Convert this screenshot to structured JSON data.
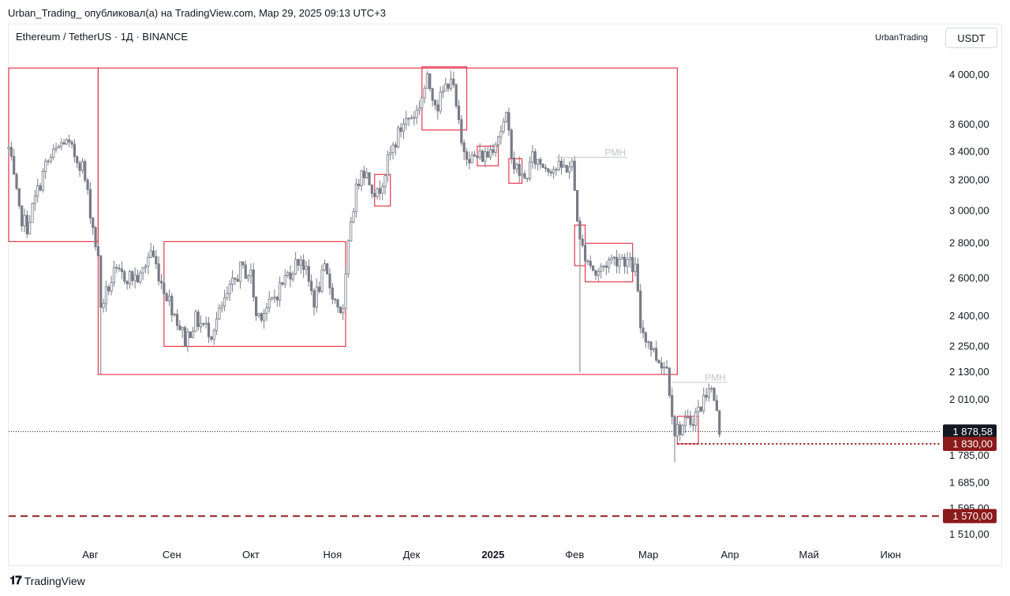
{
  "header": {
    "published_line": "Urban_Trading_ опубликовал(а) на TradingView.com, Мар 29, 2025 09:13 UTC+3",
    "symbol_line": "Ethereum / TetherUS · 1Д · BINANCE",
    "author": "UrbanTrading",
    "currency": "USDT"
  },
  "footer": {
    "logo_glyph": "𝟏𝟕",
    "brand": "TradingView"
  },
  "colors": {
    "candle": "#787b86",
    "box": "#e8384f",
    "level_dark": "#8b1a1a",
    "price_tag_current": "#131722",
    "grid_text": "#131722"
  },
  "chart_data": {
    "type": "candlestick",
    "symbol": "Ethereum / TetherUS",
    "timeframe": "1Д",
    "exchange": "BINANCE",
    "y_scale": "log",
    "ylim": [
      1480,
      4200
    ],
    "y_ticks": [
      {
        "value": 4000,
        "label": "4 000,00"
      },
      {
        "value": 3600,
        "label": "3 600,00"
      },
      {
        "value": 3400,
        "label": "3 400,00"
      },
      {
        "value": 3200,
        "label": "3 200,00"
      },
      {
        "value": 3000,
        "label": "3 000,00"
      },
      {
        "value": 2800,
        "label": "2 800,00"
      },
      {
        "value": 2600,
        "label": "2 600,00"
      },
      {
        "value": 2400,
        "label": "2 400,00"
      },
      {
        "value": 2250,
        "label": "2 250,00"
      },
      {
        "value": 2130,
        "label": "2 130,00"
      },
      {
        "value": 2010,
        "label": "2 010,00"
      },
      {
        "value": 1785,
        "label": "1 785,00"
      },
      {
        "value": 1685,
        "label": "1 685,00"
      },
      {
        "value": 1595,
        "label": "1 595,00"
      },
      {
        "value": 1510,
        "label": "1 510,00"
      }
    ],
    "x_ticks": [
      {
        "date": "2024-08-01",
        "label": "Авг",
        "bold": false
      },
      {
        "date": "2024-09-01",
        "label": "Сен",
        "bold": false
      },
      {
        "date": "2024-10-01",
        "label": "Окт",
        "bold": false
      },
      {
        "date": "2024-11-01",
        "label": "Ноя",
        "bold": false
      },
      {
        "date": "2024-12-01",
        "label": "Дек",
        "bold": false
      },
      {
        "date": "2025-01-01",
        "label": "2025",
        "bold": true
      },
      {
        "date": "2025-02-01",
        "label": "Фев",
        "bold": false
      },
      {
        "date": "2025-03-01",
        "label": "Мар",
        "bold": false
      },
      {
        "date": "2025-04-01",
        "label": "Апр",
        "bold": false
      },
      {
        "date": "2025-05-01",
        "label": "Май",
        "bold": false
      },
      {
        "date": "2025-06-01",
        "label": "Июн",
        "bold": false
      }
    ],
    "x_range": [
      "2024-07-01",
      "2025-06-20"
    ],
    "price_anchors": [
      [
        "2024-07-01",
        3420
      ],
      [
        "2024-07-05",
        2980
      ],
      [
        "2024-07-08",
        2900
      ],
      [
        "2024-07-15",
        3300
      ],
      [
        "2024-07-22",
        3480
      ],
      [
        "2024-07-29",
        3300
      ],
      [
        "2024-08-04",
        2700
      ],
      [
        "2024-08-05",
        2450
      ],
      [
        "2024-08-10",
        2620
      ],
      [
        "2024-08-20",
        2600
      ],
      [
        "2024-08-24",
        2760
      ],
      [
        "2024-08-28",
        2580
      ],
      [
        "2024-09-06",
        2280
      ],
      [
        "2024-09-10",
        2380
      ],
      [
        "2024-09-16",
        2320
      ],
      [
        "2024-09-27",
        2650
      ],
      [
        "2024-10-01",
        2620
      ],
      [
        "2024-10-03",
        2400
      ],
      [
        "2024-10-08",
        2450
      ],
      [
        "2024-10-14",
        2600
      ],
      [
        "2024-10-20",
        2720
      ],
      [
        "2024-10-25",
        2480
      ],
      [
        "2024-10-29",
        2640
      ],
      [
        "2024-11-02",
        2480
      ],
      [
        "2024-11-05",
        2410
      ],
      [
        "2024-11-08",
        2950
      ],
      [
        "2024-11-12",
        3300
      ],
      [
        "2024-11-18",
        3100
      ],
      [
        "2024-11-23",
        3380
      ],
      [
        "2024-11-28",
        3620
      ],
      [
        "2024-12-03",
        3700
      ],
      [
        "2024-12-07",
        3950
      ],
      [
        "2024-12-11",
        3750
      ],
      [
        "2024-12-16",
        4000
      ],
      [
        "2024-12-20",
        3450
      ],
      [
        "2024-12-24",
        3350
      ],
      [
        "2024-12-30",
        3380
      ],
      [
        "2025-01-06",
        3640
      ],
      [
        "2025-01-09",
        3300
      ],
      [
        "2025-01-13",
        3200
      ],
      [
        "2025-01-16",
        3350
      ],
      [
        "2025-01-21",
        3300
      ],
      [
        "2025-01-26",
        3280
      ],
      [
        "2025-01-31",
        3300
      ],
      [
        "2025-02-03",
        2800
      ],
      [
        "2025-02-09",
        2620
      ],
      [
        "2025-02-14",
        2700
      ],
      [
        "2025-02-19",
        2720
      ],
      [
        "2025-02-24",
        2650
      ],
      [
        "2025-02-26",
        2350
      ],
      [
        "2025-03-04",
        2200
      ],
      [
        "2025-03-08",
        2150
      ],
      [
        "2025-03-11",
        1880
      ],
      [
        "2025-03-17",
        1920
      ],
      [
        "2025-03-21",
        1980
      ],
      [
        "2025-03-24",
        2080
      ],
      [
        "2025-03-26",
        2010
      ],
      [
        "2025-03-28",
        1880
      ]
    ],
    "wick_events": [
      {
        "date": "2024-08-05",
        "low": 2120
      },
      {
        "date": "2025-02-03",
        "low": 2130
      },
      {
        "date": "2025-03-11",
        "low": 1760
      }
    ],
    "current_price": {
      "value": 1878.58,
      "label": "1 878,58"
    },
    "levels": [
      {
        "value": 1830,
        "label": "1 830,00",
        "style": "dotted",
        "from": "2025-03-12"
      },
      {
        "value": 1570,
        "label": "1 570,00",
        "style": "dashed",
        "from": "2024-07-01"
      }
    ],
    "zones": [
      {
        "from": "2024-07-01",
        "to": "2024-08-04",
        "low": 2810,
        "high": 4060
      },
      {
        "from": "2024-08-04",
        "to": "2025-03-12",
        "low": 2120,
        "high": 4060
      },
      {
        "from": "2024-08-29",
        "to": "2024-11-06",
        "low": 2250,
        "high": 2810
      },
      {
        "from": "2024-11-17",
        "to": "2024-11-23",
        "low": 3030,
        "high": 3240
      },
      {
        "from": "2024-12-05",
        "to": "2024-12-22",
        "low": 3560,
        "high": 4070
      },
      {
        "from": "2024-12-26",
        "to": "2025-01-03",
        "low": 3300,
        "high": 3440
      },
      {
        "from": "2025-01-07",
        "to": "2025-01-12",
        "low": 3180,
        "high": 3350
      },
      {
        "from": "2025-02-01",
        "to": "2025-02-05",
        "low": 2670,
        "high": 2910
      },
      {
        "from": "2025-02-05",
        "to": "2025-02-23",
        "low": 2580,
        "high": 2800
      },
      {
        "from": "2025-03-12",
        "to": "2025-03-20",
        "low": 1830,
        "high": 1940
      }
    ],
    "annotations": [
      {
        "text": "PMH",
        "date_from": "2025-01-25",
        "date_to": "2025-02-21",
        "value": 3360
      },
      {
        "text": "PMH",
        "date_from": "2025-03-10",
        "date_to": "2025-03-31",
        "value": 2085
      }
    ]
  }
}
